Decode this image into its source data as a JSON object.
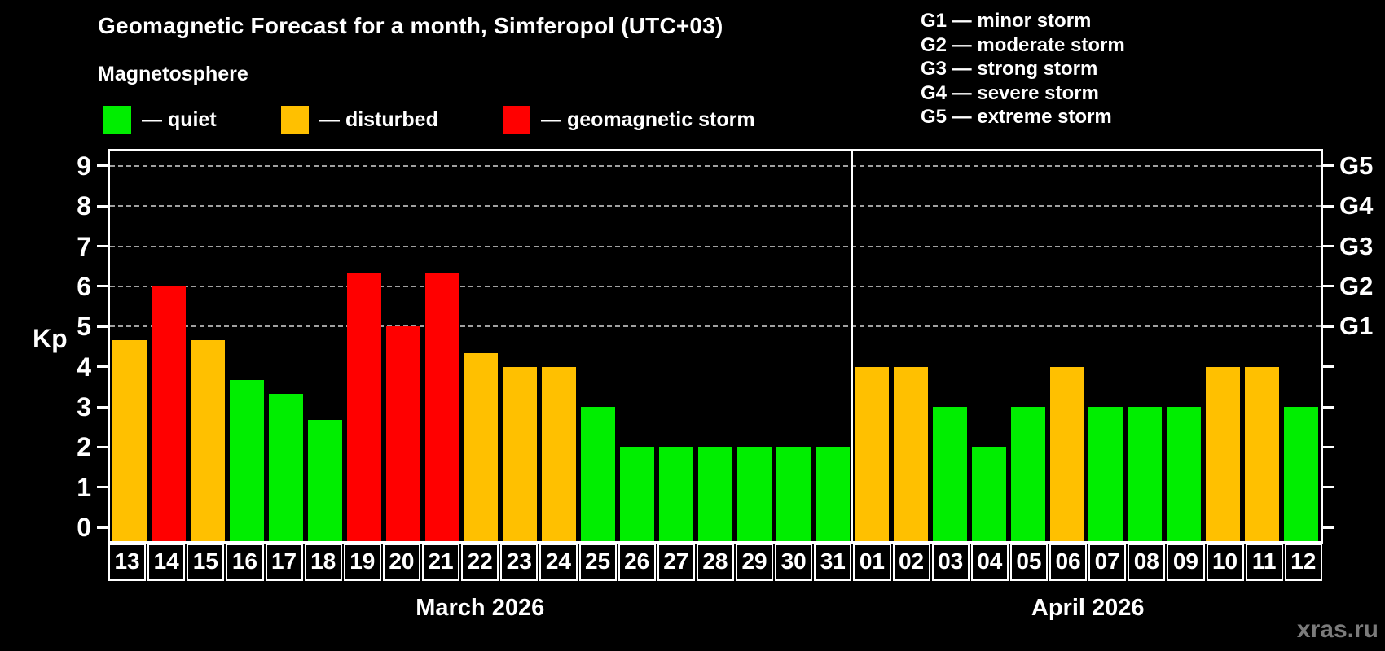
{
  "header": {
    "title": "Geomagnetic Forecast for a month, Simferopol (UTC+03)",
    "subtitle": "Magnetosphere",
    "legend": [
      {
        "key": "quiet",
        "label": "— quiet"
      },
      {
        "key": "disturbed",
        "label": "— disturbed"
      },
      {
        "key": "storm",
        "label": "— geomagnetic storm"
      }
    ],
    "g_scale": [
      "G1 — minor storm",
      "G2 — moderate storm",
      "G3 — strong storm",
      "G4 — severe storm",
      "G5 — extreme storm"
    ]
  },
  "watermark": "xras.ru",
  "colors": {
    "quiet": "#00ee00",
    "disturbed": "#ffc000",
    "storm": "#ff0000",
    "grid": "#a0a0a0",
    "axis": "#ffffff",
    "background": "#000000",
    "watermark": "#7b7b7b"
  },
  "chart_data": {
    "type": "bar",
    "ylabel": "Kp",
    "ylim": [
      -0.34,
      9.36
    ],
    "y_ticks": [
      0,
      1,
      2,
      3,
      4,
      5,
      6,
      7,
      8,
      9
    ],
    "gridlines_kp": [
      5,
      6,
      7,
      8,
      9
    ],
    "grid": "dashed horizontal at Kp 5-9",
    "g_labels": [
      {
        "kp": 5,
        "label": "G1"
      },
      {
        "kp": 6,
        "label": "G2"
      },
      {
        "kp": 7,
        "label": "G3"
      },
      {
        "kp": 8,
        "label": "G4"
      },
      {
        "kp": 9,
        "label": "G5"
      }
    ],
    "groups": [
      {
        "label": "March 2026",
        "days": [
          {
            "day": "13",
            "kp": 4.67,
            "state": "disturbed"
          },
          {
            "day": "14",
            "kp": 6.0,
            "state": "storm"
          },
          {
            "day": "15",
            "kp": 4.67,
            "state": "disturbed"
          },
          {
            "day": "16",
            "kp": 3.67,
            "state": "quiet"
          },
          {
            "day": "17",
            "kp": 3.33,
            "state": "quiet"
          },
          {
            "day": "18",
            "kp": 2.67,
            "state": "quiet"
          },
          {
            "day": "19",
            "kp": 6.33,
            "state": "storm"
          },
          {
            "day": "20",
            "kp": 5.0,
            "state": "storm"
          },
          {
            "day": "21",
            "kp": 6.33,
            "state": "storm"
          },
          {
            "day": "22",
            "kp": 4.33,
            "state": "disturbed"
          },
          {
            "day": "23",
            "kp": 4.0,
            "state": "disturbed"
          },
          {
            "day": "24",
            "kp": 4.0,
            "state": "disturbed"
          },
          {
            "day": "25",
            "kp": 3.0,
            "state": "quiet"
          },
          {
            "day": "26",
            "kp": 2.0,
            "state": "quiet"
          },
          {
            "day": "27",
            "kp": 2.0,
            "state": "quiet"
          },
          {
            "day": "28",
            "kp": 2.0,
            "state": "quiet"
          },
          {
            "day": "29",
            "kp": 2.0,
            "state": "quiet"
          },
          {
            "day": "30",
            "kp": 2.0,
            "state": "quiet"
          },
          {
            "day": "31",
            "kp": 2.0,
            "state": "quiet"
          }
        ]
      },
      {
        "label": "April 2026",
        "days": [
          {
            "day": "01",
            "kp": 4.0,
            "state": "disturbed"
          },
          {
            "day": "02",
            "kp": 4.0,
            "state": "disturbed"
          },
          {
            "day": "03",
            "kp": 3.0,
            "state": "quiet"
          },
          {
            "day": "04",
            "kp": 2.0,
            "state": "quiet"
          },
          {
            "day": "05",
            "kp": 3.0,
            "state": "quiet"
          },
          {
            "day": "06",
            "kp": 4.0,
            "state": "disturbed"
          },
          {
            "day": "07",
            "kp": 3.0,
            "state": "quiet"
          },
          {
            "day": "08",
            "kp": 3.0,
            "state": "quiet"
          },
          {
            "day": "09",
            "kp": 3.0,
            "state": "quiet"
          },
          {
            "day": "10",
            "kp": 4.0,
            "state": "disturbed"
          },
          {
            "day": "11",
            "kp": 4.0,
            "state": "disturbed"
          },
          {
            "day": "12",
            "kp": 3.0,
            "state": "quiet"
          }
        ]
      }
    ]
  }
}
